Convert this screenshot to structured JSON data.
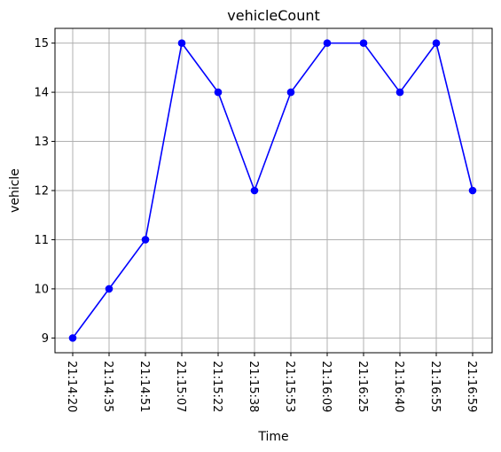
{
  "chart_data": {
    "type": "line",
    "title": "vehicleCount",
    "xlabel": "Time",
    "ylabel": "vehicle",
    "categories": [
      "21:14:20",
      "21:14:35",
      "21:14:51",
      "21:15:07",
      "21:15:22",
      "21:15:38",
      "21:15:53",
      "21:16:09",
      "21:16:25",
      "21:16:40",
      "21:16:55",
      "21:16:59"
    ],
    "series": [
      {
        "values": [
          9,
          10,
          11,
          15,
          14,
          12,
          14,
          15,
          15,
          14,
          15,
          12
        ],
        "color": "#0000ff",
        "marker": "circle"
      }
    ],
    "yticks": [
      9,
      10,
      11,
      12,
      13,
      14,
      15
    ],
    "ylim": [
      8.7,
      15.3
    ],
    "grid": true,
    "axis_color": "#000000",
    "grid_color": "#b0b0b0"
  }
}
